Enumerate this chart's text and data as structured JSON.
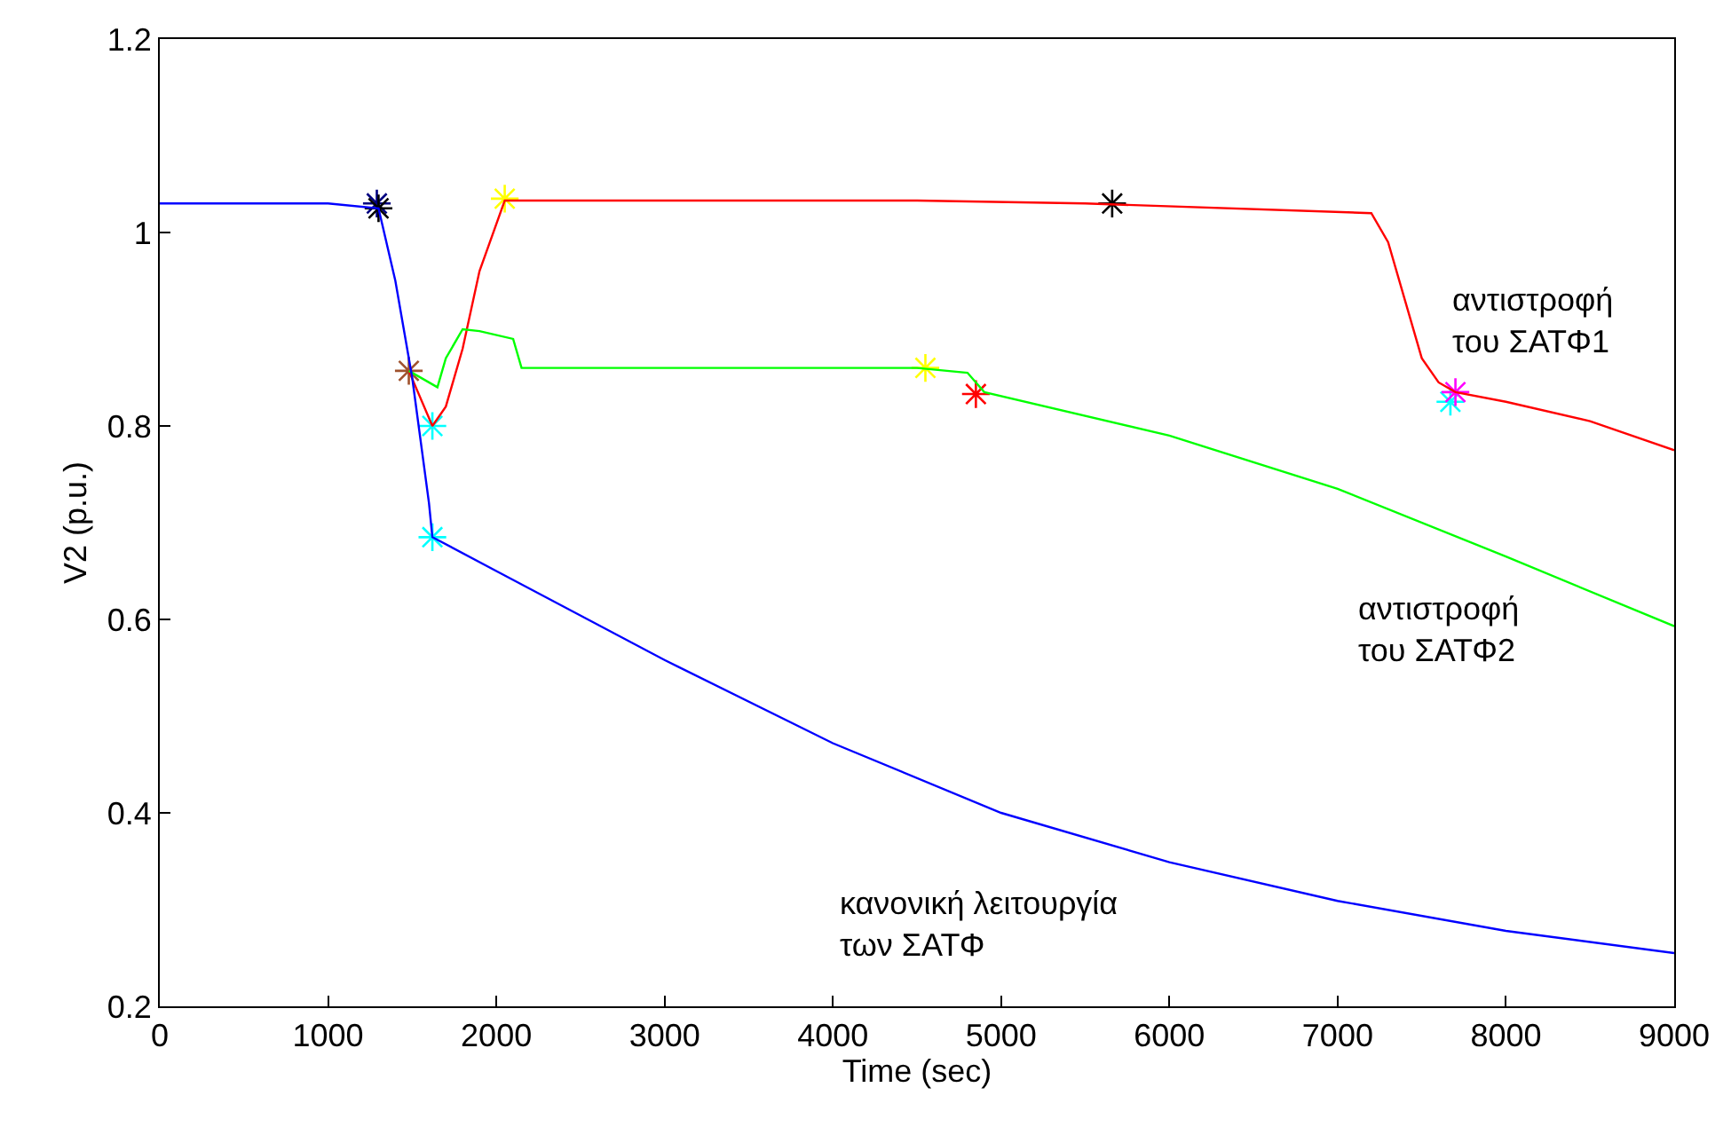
{
  "chart_data": {
    "type": "line",
    "xlabel": "Time (sec)",
    "ylabel": "V2 (p.u.)",
    "xlim": [
      0,
      9000
    ],
    "ylim": [
      0.2,
      1.2
    ],
    "xticks": [
      0,
      1000,
      2000,
      3000,
      4000,
      5000,
      6000,
      7000,
      8000,
      9000
    ],
    "yticks": [
      0.2,
      0.4,
      0.6,
      0.8,
      1,
      1.2
    ],
    "marker": "none",
    "line_style": "solid",
    "series": [
      {
        "color": "#ff0000",
        "x": [
          1480,
          1620,
          1700,
          1800,
          1900,
          2050,
          3000,
          4500,
          5500,
          7200,
          7300,
          7400,
          7500,
          7600,
          7700,
          8000,
          8500,
          9000
        ],
        "values": [
          0.857,
          0.8,
          0.82,
          0.88,
          0.96,
          1.033,
          1.033,
          1.033,
          1.03,
          1.02,
          0.99,
          0.93,
          0.87,
          0.845,
          0.835,
          0.825,
          0.805,
          0.775
        ]
      },
      {
        "color": "#00ff00",
        "x": [
          1480,
          1650,
          1700,
          1800,
          1900,
          2100,
          2150,
          3000,
          4500,
          4800,
          4900,
          6000,
          7000,
          8000,
          9000
        ],
        "values": [
          0.857,
          0.84,
          0.87,
          0.9,
          0.898,
          0.89,
          0.86,
          0.86,
          0.86,
          0.855,
          0.835,
          0.79,
          0.735,
          0.665,
          0.593
        ]
      },
      {
        "color": "#0000ff",
        "x": [
          0,
          1000,
          1300,
          1400,
          1500,
          1600,
          1620,
          2000,
          3000,
          4000,
          5000,
          6000,
          7000,
          8000,
          9000
        ],
        "values": [
          1.03,
          1.03,
          1.025,
          0.95,
          0.85,
          0.72,
          0.685,
          0.65,
          0.558,
          0.472,
          0.4,
          0.349,
          0.309,
          0.278,
          0.255
        ]
      },
      {
        "type": "scatter",
        "marker": "cross",
        "color": "#000080",
        "x": [
          1290
        ],
        "values": [
          1.03
        ]
      },
      {
        "type": "scatter",
        "marker": "cross",
        "color": "#000000",
        "x": [
          1300,
          5660
        ],
        "values": [
          1.025,
          1.03
        ]
      },
      {
        "type": "scatter",
        "marker": "cross",
        "color": "#a0522d",
        "x": [
          1480
        ],
        "values": [
          0.857
        ]
      },
      {
        "type": "scatter",
        "marker": "cross",
        "color": "#00ffff",
        "x": [
          1620,
          1620,
          7670
        ],
        "values": [
          0.8,
          0.685,
          0.825
        ]
      },
      {
        "type": "scatter",
        "marker": "cross",
        "color": "#ffff00",
        "x": [
          2050,
          4550
        ],
        "values": [
          1.035,
          0.86
        ]
      },
      {
        "type": "scatter",
        "marker": "cross",
        "color": "#ff0000",
        "x": [
          4850
        ],
        "values": [
          0.833
        ]
      },
      {
        "type": "scatter",
        "marker": "cross",
        "color": "#ff00ff",
        "x": [
          7700
        ],
        "values": [
          0.835
        ]
      }
    ],
    "annotations": [
      "αντιστροφή\nτου ΣΑΤΦ1",
      "αντιστροφή\nτου ΣΑΤΦ2",
      "κανονική λειτουργία\nτων ΣΑΤΦ"
    ]
  }
}
